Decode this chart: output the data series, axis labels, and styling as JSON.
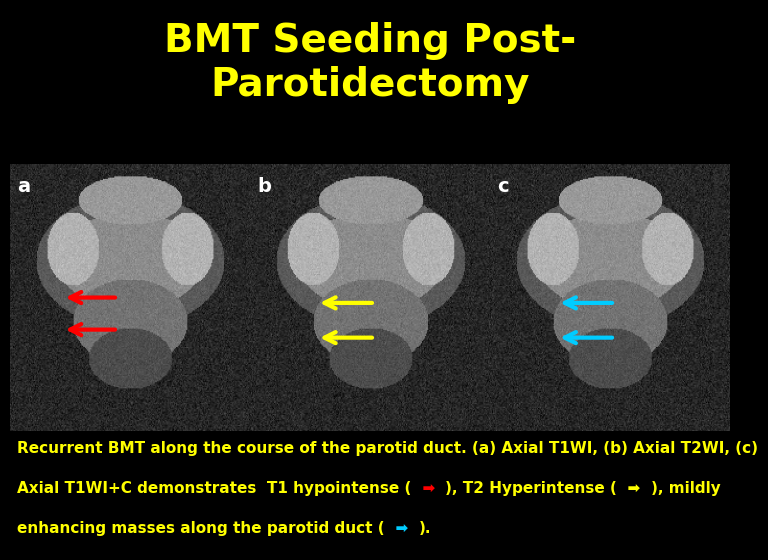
{
  "title_line1": "BMT Seeding Post-",
  "title_line2": "Parotidectomy",
  "title_color": "#ffff00",
  "bg_color": "#000000",
  "separator_color": "#cc0000",
  "panel_labels": [
    "a",
    "b",
    "c"
  ],
  "panel_label_color": "#ffffff",
  "caption_text": "Recurrent BMT along the course of the parotid duct. (a) Axial T1WI, (b) Axial T2WI, (c)\nAxial T1WI+C demonstrates  T1 hypointense (   ), T2 Hyperintense (   ), mildly\nenhancing masses along the parotid duct (   ).",
  "caption_color": "#ffff00",
  "caption_bg": "#000000",
  "arrow_a_color": "#ff0000",
  "arrow_b_color": "#ffff00",
  "arrow_c_color": "#00ccff",
  "red_line_y": 0.745,
  "title_fontsize": 28,
  "label_fontsize": 14,
  "caption_fontsize": 11
}
